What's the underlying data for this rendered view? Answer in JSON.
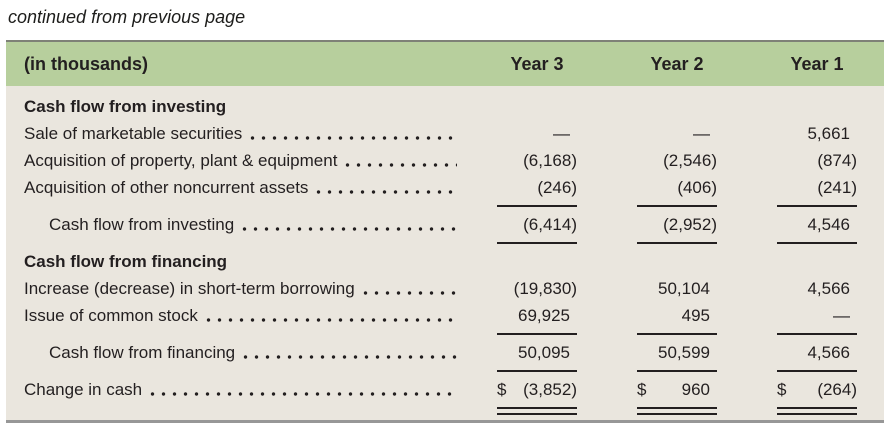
{
  "page": {
    "continued_note": "continued from previous page"
  },
  "colors": {
    "header_bg": "#b7cf9d",
    "body_bg": "#eae6de",
    "text": "#231f20",
    "rule": "#231f20",
    "table_top_border": "#7e8177",
    "table_bottom_border": "#979797"
  },
  "table": {
    "currency_symbol": "$",
    "header": {
      "label_col": "(in thousands)",
      "year_cols": [
        "Year 3",
        "Year 2",
        "Year 1"
      ]
    },
    "rows": [
      {
        "label": "Cash flow from investing",
        "bold": true
      },
      {
        "label": "Sale of marketable securities",
        "values": [
          "—",
          "—",
          "5,661"
        ]
      },
      {
        "label": "Acquisition of property, plant & equipment",
        "values": [
          "(6,168)",
          "(2,546)",
          "(874)"
        ]
      },
      {
        "label": "Acquisition of other noncurrent assets",
        "values": [
          "(246)",
          "(406)",
          "(241)"
        ],
        "underline": "single"
      },
      {
        "label": "Cash flow from investing",
        "indent": true,
        "gap_before": true,
        "values": [
          "(6,414)",
          "(2,952)",
          "4,546"
        ],
        "underline": "single"
      },
      {
        "label": "Cash flow from financing",
        "bold": true,
        "gap_before": true
      },
      {
        "label": "Increase (decrease) in short-term borrowing",
        "values": [
          "(19,830)",
          "50,104",
          "4,566"
        ]
      },
      {
        "label": "Issue of common stock",
        "values": [
          "69,925",
          "495",
          "—"
        ],
        "underline": "single"
      },
      {
        "label": "Cash flow from financing",
        "indent": true,
        "gap_before": true,
        "values": [
          "50,095",
          "50,599",
          "4,566"
        ],
        "underline": "single"
      },
      {
        "label": "Change in cash",
        "gap_before": true,
        "dollar": true,
        "values": [
          "(3,852)",
          "960",
          "(264)"
        ],
        "underline": "double"
      }
    ]
  }
}
